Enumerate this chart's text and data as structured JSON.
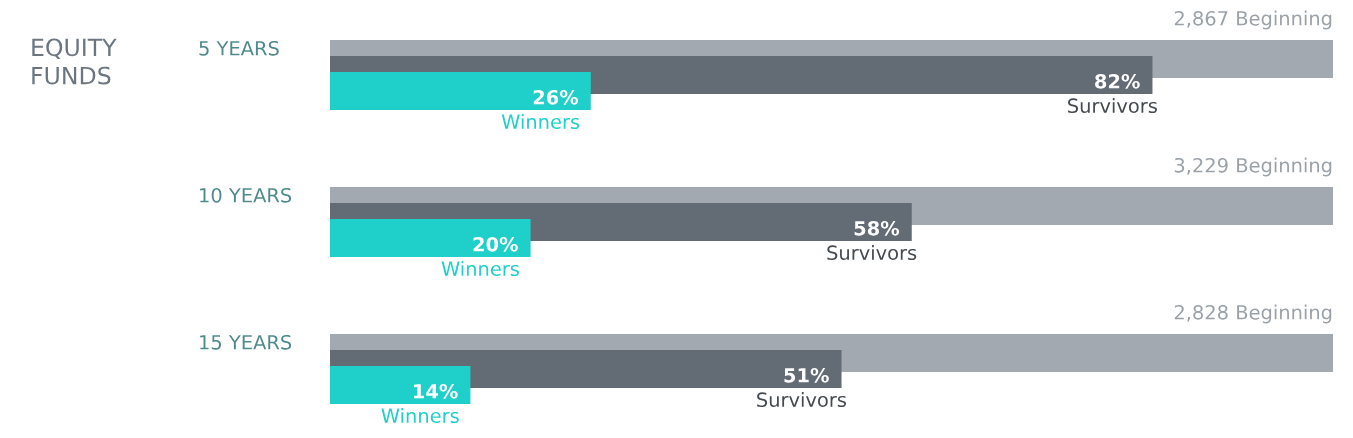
{
  "chart_data": {
    "type": "bar",
    "orientation": "horizontal",
    "title": "EQUITY\nFUNDS",
    "categories": [
      "5 YEARS",
      "10 YEARS",
      "15 YEARS"
    ],
    "series": [
      {
        "color": "#a3a9b1",
        "values": [
          100,
          100,
          100
        ]
      },
      {
        "name": "Survivors",
        "color": "#636b75",
        "values": [
          82,
          58,
          51
        ],
        "value_labels": [
          "82%",
          "58%",
          "51%"
        ]
      },
      {
        "name": "Winners",
        "color": "#1fcfc9",
        "values": [
          26,
          20,
          14
        ],
        "value_labels": [
          "26%",
          "20%",
          "14%"
        ]
      }
    ],
    "annotations": [
      "2,867 Beginning",
      "3,229 Beginning",
      "2,828 Beginning"
    ],
    "xlim": [
      0,
      100
    ],
    "legend": false
  }
}
